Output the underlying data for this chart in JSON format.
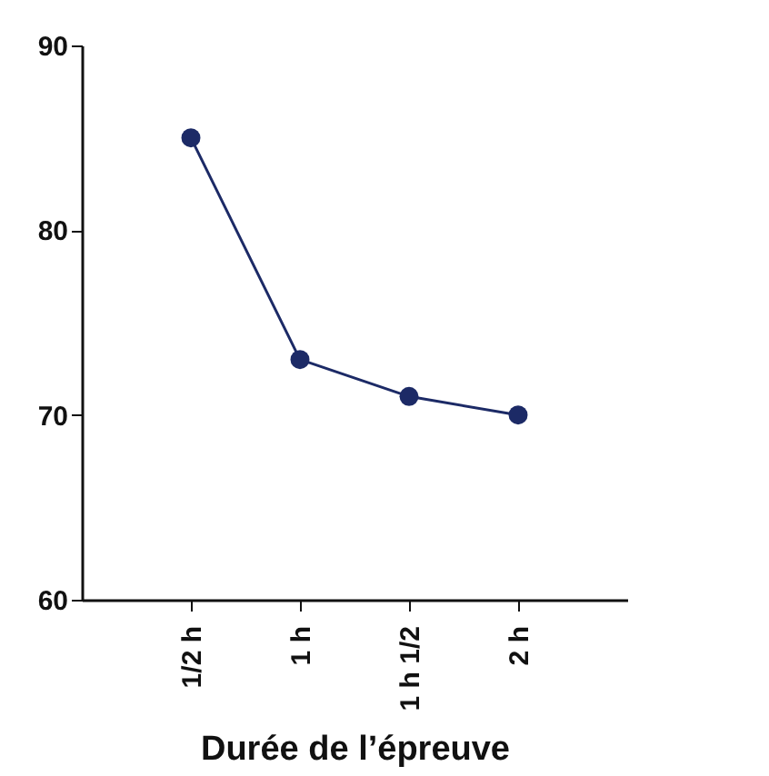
{
  "chart_data": {
    "type": "line",
    "xlabel": "Durée de l’épreuve",
    "categories": [
      "1/2 h",
      "1 h",
      "1 h 1/2",
      "2 h"
    ],
    "series": [
      {
        "color": "#1c2a66",
        "values": [
          85,
          73,
          71,
          70
        ]
      }
    ],
    "ylim": [
      60,
      90
    ],
    "yticks": [
      60,
      70,
      80,
      90
    ],
    "grid": false,
    "marker": "circle",
    "line_style": "solid",
    "legend": false
  }
}
